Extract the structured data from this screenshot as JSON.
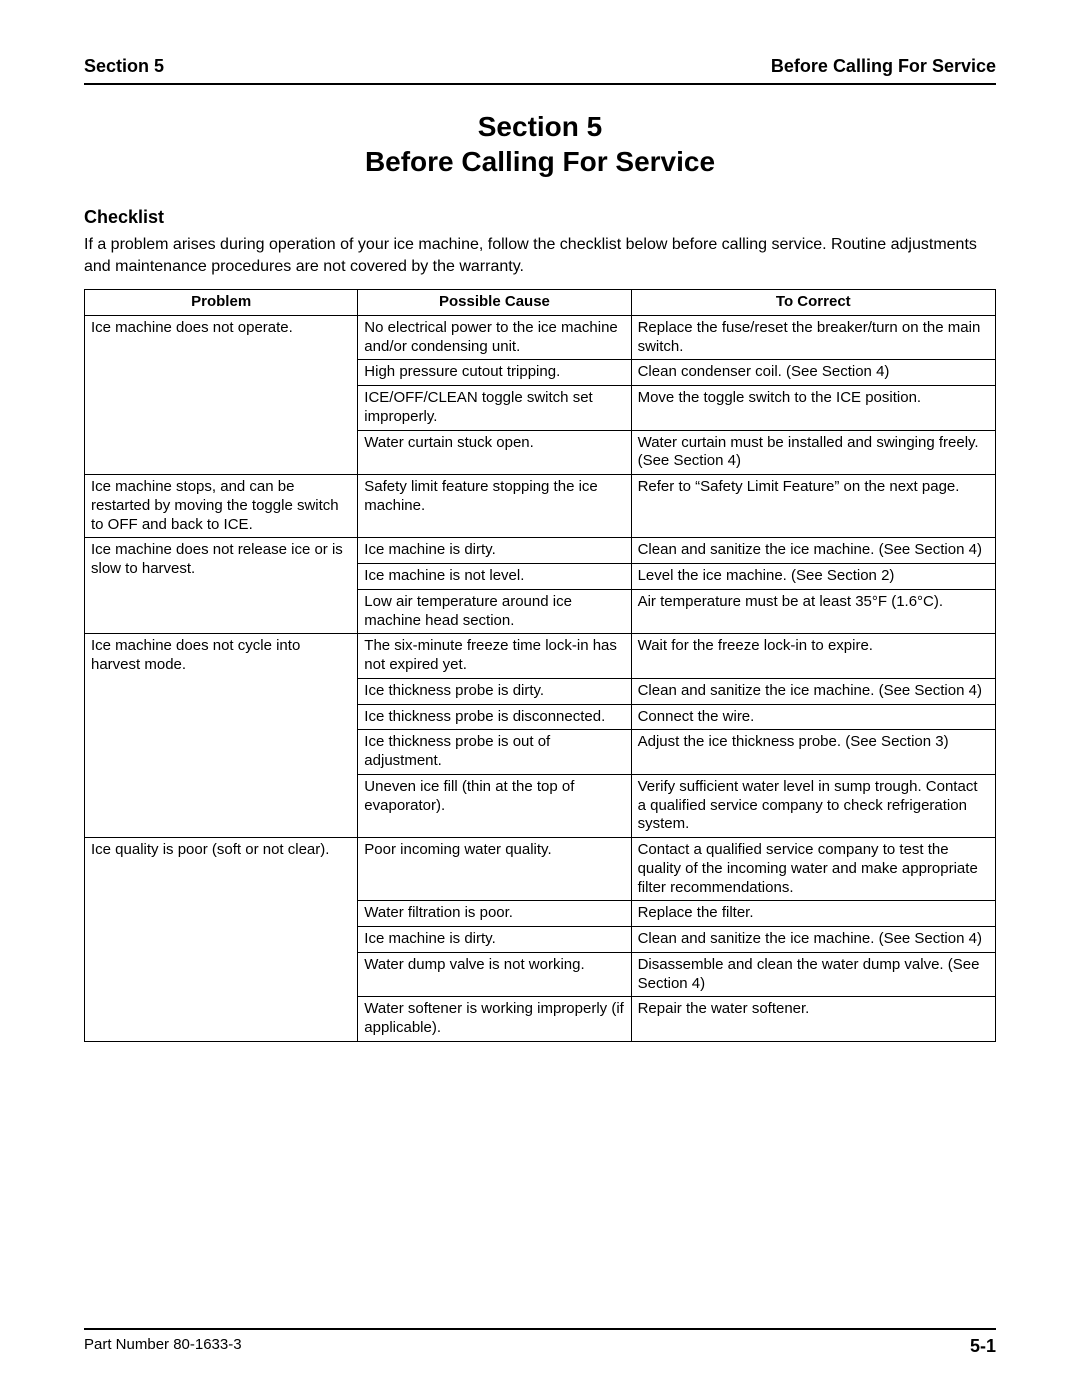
{
  "header": {
    "left": "Section 5",
    "right": "Before Calling For Service"
  },
  "title": {
    "line1": "Section 5",
    "line2": "Before Calling For Service"
  },
  "checklist": {
    "heading": "Checklist",
    "intro": "If a problem arises during operation of your ice machine, follow the checklist below before calling service. Routine adjustments and maintenance procedures are not covered by the warranty."
  },
  "table": {
    "columns": [
      "Problem",
      "Possible Cause",
      "To Correct"
    ],
    "column_widths_pct": [
      30,
      30,
      40
    ],
    "border_color": "#000000",
    "font_size_pt": 11,
    "groups": [
      {
        "problem": "Ice machine does not operate.",
        "rows": [
          {
            "cause": "No electrical power to the ice machine and/or condensing unit.",
            "correct": "Replace the fuse/reset the breaker/turn on the main switch."
          },
          {
            "cause": "High pressure cutout tripping.",
            "correct": "Clean condenser coil. (See Section 4)"
          },
          {
            "cause": "ICE/OFF/CLEAN toggle switch set improperly.",
            "correct": "Move the toggle switch to the ICE position."
          },
          {
            "cause": "Water curtain stuck open.",
            "correct": "Water curtain must be installed and swinging freely. (See Section 4)"
          }
        ]
      },
      {
        "problem": "Ice machine stops, and can be restarted by moving the toggle switch to OFF and back to ICE.",
        "rows": [
          {
            "cause": "Safety limit feature stopping the ice machine.",
            "correct": "Refer to “Safety Limit Feature” on the next page."
          }
        ]
      },
      {
        "problem": "Ice machine does not release ice or is slow to harvest.",
        "rows": [
          {
            "cause": "Ice machine is dirty.",
            "correct": "Clean and sanitize the ice machine. (See Section 4)"
          },
          {
            "cause": "Ice machine is not level.",
            "correct": "Level the ice machine. (See Section 2)"
          },
          {
            "cause": "Low air temperature around ice machine head section.",
            "correct": "Air temperature must be at least 35°F (1.6°C)."
          }
        ]
      },
      {
        "problem": "Ice machine does not cycle into harvest mode.",
        "rows": [
          {
            "cause": "The six-minute freeze time lock-in has not expired yet.",
            "correct": "Wait for the freeze lock-in to expire."
          },
          {
            "cause": "Ice thickness probe is dirty.",
            "correct": "Clean and sanitize the ice machine. (See Section 4)"
          },
          {
            "cause": "Ice thickness probe is disconnected.",
            "correct": "Connect the wire."
          },
          {
            "cause": "Ice thickness probe is out of adjustment.",
            "correct": "Adjust the ice thickness probe. (See Section 3)"
          },
          {
            "cause": "Uneven ice fill (thin at the top of evaporator).",
            "correct": "Verify sufficient water level in sump trough. Contact a qualified service company to check refrigeration system."
          }
        ]
      },
      {
        "problem": "Ice quality is poor (soft or not clear).",
        "rows": [
          {
            "cause": "Poor incoming water quality.",
            "correct": "Contact a qualified service company to test the quality of the incoming water and make appropriate filter recommendations."
          },
          {
            "cause": "Water filtration is poor.",
            "correct": "Replace the filter."
          },
          {
            "cause": "Ice machine is dirty.",
            "correct": "Clean and sanitize the ice machine. (See Section 4)"
          },
          {
            "cause": "Water dump valve is not working.",
            "correct": "Disassemble and clean the water dump valve. (See Section 4)"
          },
          {
            "cause": "Water softener is working improperly (if applicable).",
            "correct": "Repair the water softener."
          }
        ]
      }
    ]
  },
  "footer": {
    "part_number": "Part Number 80-1633-3",
    "page": "5-1"
  },
  "style": {
    "page_background": "#ffffff",
    "text_color": "#000000",
    "rule_color": "#000000",
    "title_fontsize_pt": 21,
    "header_fontsize_pt": 14,
    "body_fontsize_pt": 12
  }
}
